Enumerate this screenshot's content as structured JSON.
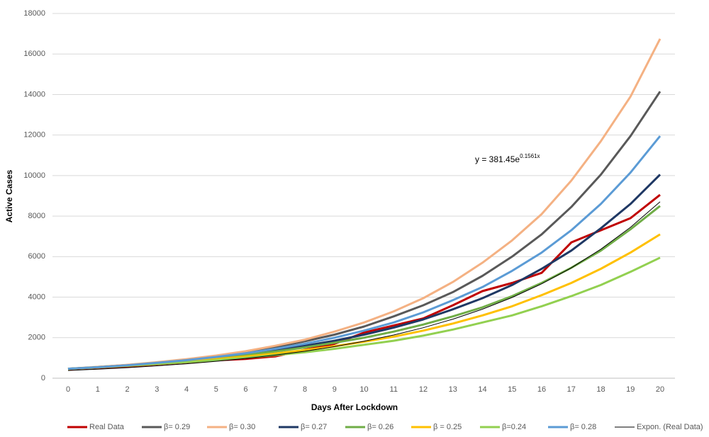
{
  "chart_data": {
    "type": "line",
    "xlabel": "Days After Lockdown",
    "ylabel": "Active Cases",
    "x": [
      0,
      1,
      2,
      3,
      4,
      5,
      6,
      7,
      8,
      9,
      10,
      11,
      12,
      13,
      14,
      15,
      16,
      17,
      18,
      19,
      20
    ],
    "xlim": [
      0,
      20
    ],
    "xticks": [
      0,
      1,
      2,
      3,
      4,
      5,
      6,
      7,
      8,
      9,
      10,
      11,
      12,
      13,
      14,
      15,
      16,
      17,
      18,
      19,
      20
    ],
    "ylim": [
      0,
      18000
    ],
    "yticks": [
      0,
      2000,
      4000,
      6000,
      8000,
      10000,
      12000,
      14000,
      16000,
      18000
    ],
    "grid": true,
    "legend": "bottom",
    "annotation": {
      "text": "y = 381.45e",
      "superscript": "0.1561x"
    },
    "series": [
      {
        "name": "Real Data",
        "color": "#c00000",
        "values": [
          450,
          510,
          580,
          680,
          780,
          880,
          950,
          1080,
          1400,
          1700,
          2250,
          2600,
          2950,
          3600,
          4300,
          4700,
          5200,
          6700,
          7300,
          7900,
          9050
        ]
      },
      {
        "name": "β= 0.29",
        "color": "#595959",
        "values": [
          470,
          550,
          650,
          780,
          920,
          1090,
          1290,
          1530,
          1820,
          2150,
          2550,
          3050,
          3600,
          4250,
          5050,
          6000,
          7100,
          8450,
          10050,
          11950,
          14150
        ]
      },
      {
        "name": "β= 0.30",
        "color": "#f4b183",
        "values": [
          470,
          560,
          660,
          790,
          940,
          1120,
          1330,
          1600,
          1900,
          2300,
          2750,
          3300,
          3950,
          4750,
          5700,
          6800,
          8100,
          9750,
          11700,
          13900,
          16750
        ]
      },
      {
        "name": "β= 0.27",
        "color": "#1f3864",
        "values": [
          460,
          540,
          630,
          740,
          870,
          1020,
          1190,
          1380,
          1600,
          1850,
          2150,
          2500,
          2900,
          3400,
          3950,
          4600,
          5400,
          6300,
          7400,
          8600,
          10050
        ]
      },
      {
        "name": "β= 0.26",
        "color": "#70ad47",
        "values": [
          460,
          540,
          630,
          740,
          860,
          990,
          1150,
          1320,
          1520,
          1750,
          2000,
          2300,
          2650,
          3050,
          3500,
          4050,
          4700,
          5450,
          6300,
          7350,
          8500
        ]
      },
      {
        "name": "β = 0.25",
        "color": "#ffc000",
        "values": [
          460,
          530,
          620,
          710,
          820,
          940,
          1070,
          1220,
          1390,
          1580,
          1800,
          2050,
          2350,
          2700,
          3100,
          3550,
          4100,
          4700,
          5400,
          6200,
          7100
        ]
      },
      {
        "name": "β=0.24",
        "color": "#92d050",
        "values": [
          460,
          530,
          610,
          700,
          790,
          890,
          1010,
          1140,
          1280,
          1450,
          1650,
          1850,
          2100,
          2400,
          2750,
          3100,
          3550,
          4050,
          4600,
          5250,
          5950
        ]
      },
      {
        "name": "β= 0.28",
        "color": "#5b9bd5",
        "values": [
          470,
          540,
          640,
          760,
          890,
          1050,
          1230,
          1450,
          1700,
          2000,
          2350,
          2750,
          3250,
          3850,
          4500,
          5300,
          6200,
          7300,
          8600,
          10150,
          11950
        ]
      },
      {
        "name": "Expon. (Real Data)",
        "color": "#000000",
        "thin": true,
        "values": [
          381,
          446,
          522,
          610,
          713,
          834,
          975,
          1140,
          1333,
          1559,
          1823,
          2131,
          2492,
          2914,
          3407,
          3984,
          4659,
          5447,
          6369,
          7447,
          8708
        ]
      }
    ]
  }
}
